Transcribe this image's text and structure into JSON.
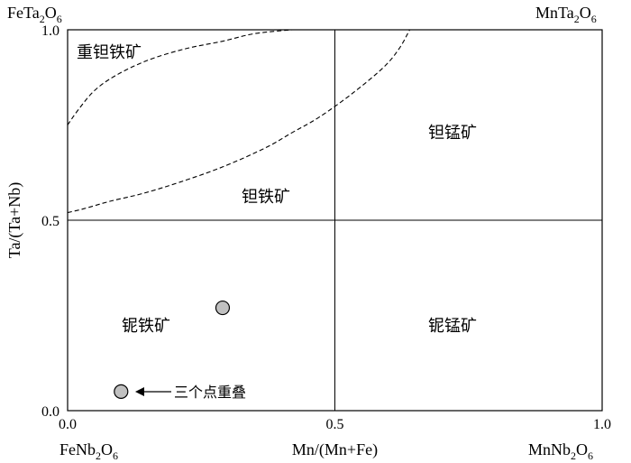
{
  "chart_data": {
    "type": "scatter",
    "xlabel": "Mn/(Mn+Fe)",
    "ylabel": "Ta/(Ta+Nb)",
    "xlim": [
      0,
      1
    ],
    "ylim": [
      0,
      1
    ],
    "x_ticks": [
      "0.0",
      "0.5",
      "1.0"
    ],
    "y_ticks": [
      "0.0",
      "0.5",
      "1.0"
    ],
    "grid": "dividing lines at 0.5",
    "corner_labels": {
      "top_left": {
        "base": "FeTa",
        "sub1": "2",
        "mid": "O",
        "sub2": "6"
      },
      "top_right": {
        "base": "MnTa",
        "sub1": "2",
        "mid": "O",
        "sub2": "6"
      },
      "bottom_left": {
        "base": "FeNb",
        "sub1": "2",
        "mid": "O",
        "sub2": "6"
      },
      "bottom_right": {
        "base": "MnNb",
        "sub1": "2",
        "mid": "O",
        "sub2": "6"
      }
    },
    "field_labels": {
      "heavy_tantalite": "重钽铁矿",
      "ferrotantalite": "钽铁矿",
      "manganotantalite": "钽锰矿",
      "ferrocolumbite": "铌铁矿",
      "manganocolumbite": "铌锰矿"
    },
    "points": [
      {
        "x": 0.29,
        "y": 0.27
      },
      {
        "x": 0.1,
        "y": 0.05
      }
    ],
    "annotation": "三个点重叠",
    "boundary_curves": [
      {
        "style": "dashed",
        "x": [
          0.0,
          0.03,
          0.08,
          0.14,
          0.21,
          0.29,
          0.37,
          0.42,
          0.47,
          0.53,
          0.59,
          0.62,
          0.64
        ],
        "y": [
          0.52,
          0.53,
          0.55,
          0.57,
          0.6,
          0.64,
          0.69,
          0.73,
          0.77,
          0.83,
          0.9,
          0.95,
          1.0
        ]
      },
      {
        "style": "dashed",
        "x": [
          0.0,
          0.02,
          0.05,
          0.09,
          0.15,
          0.22,
          0.29,
          0.35,
          0.42
        ],
        "y": [
          0.75,
          0.79,
          0.84,
          0.88,
          0.92,
          0.95,
          0.97,
          0.99,
          1.0
        ]
      }
    ],
    "colors": {
      "point_fill": "#c0c0c0",
      "point_stroke": "#000000",
      "axes": "#000000"
    }
  }
}
